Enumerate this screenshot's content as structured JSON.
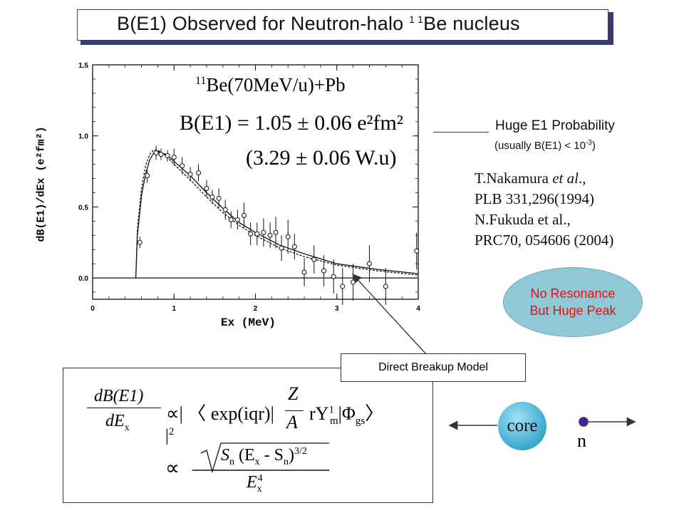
{
  "title": {
    "prefix": "B(E1)  Observed for Neutron-halo ",
    "sup_mass": "1 1",
    "suffix": "Be nucleus"
  },
  "plot": {
    "reaction_sup": "11",
    "reaction": "Be(70MeV/u)+Pb",
    "be1_value": "B(E1) = 1.05 ± 0.06 e²fm²",
    "wu_value": "(3.29 ± 0.06 W.u)",
    "xlabel": "Ex (MeV)",
    "ylabel": "dB(E1)/dEx (e²fm²)"
  },
  "chart_data": {
    "type": "scatter",
    "xlabel": "Ex (MeV)",
    "ylabel": "dB(E1)/dEx (e²fm²)",
    "xlim": [
      0,
      4
    ],
    "ylim": [
      -0.15,
      1.5
    ],
    "xticks": [
      "0",
      "1",
      "2",
      "3",
      "4"
    ],
    "yticks": [
      "0.0",
      "0.5",
      "1.0",
      "1.5"
    ],
    "series": [
      {
        "style": "points",
        "x": [
          0.58,
          0.67,
          0.78,
          0.84,
          0.92,
          1.0,
          1.1,
          1.2,
          1.3,
          1.4,
          1.47,
          1.55,
          1.63,
          1.7,
          1.78,
          1.86,
          1.94,
          2.02,
          2.1,
          2.18,
          2.25,
          2.32,
          2.4,
          2.48,
          2.6,
          2.72,
          2.84,
          2.96,
          3.07,
          3.2,
          3.4,
          3.6,
          3.98
        ],
        "y": [
          0.25,
          0.72,
          0.88,
          0.87,
          0.86,
          0.85,
          0.79,
          0.73,
          0.74,
          0.63,
          0.57,
          0.56,
          0.48,
          0.41,
          0.41,
          0.44,
          0.31,
          0.31,
          0.32,
          0.3,
          0.32,
          0.21,
          0.29,
          0.22,
          0.04,
          0.13,
          0.05,
          0.01,
          -0.06,
          -0.03,
          0.1,
          -0.06,
          0.19
        ],
        "err": [
          0.04,
          0.05,
          0.05,
          0.04,
          0.04,
          0.06,
          0.06,
          0.05,
          0.06,
          0.06,
          0.05,
          0.07,
          0.07,
          0.06,
          0.07,
          0.09,
          0.08,
          0.08,
          0.1,
          0.09,
          0.11,
          0.09,
          0.12,
          0.09,
          0.1,
          0.1,
          0.11,
          0.12,
          0.13,
          0.13,
          0.13,
          0.13,
          0.13
        ]
      },
      {
        "style": "solid",
        "x": [
          0.53,
          0.55,
          0.6,
          0.65,
          0.7,
          0.75,
          0.8,
          0.9,
          1.0,
          1.2,
          1.4,
          1.6,
          1.8,
          2.0,
          2.3,
          2.6,
          3.0,
          3.5,
          4.0
        ],
        "y": [
          0.0,
          0.3,
          0.58,
          0.73,
          0.83,
          0.88,
          0.89,
          0.87,
          0.82,
          0.72,
          0.6,
          0.49,
          0.39,
          0.32,
          0.23,
          0.17,
          0.1,
          0.06,
          0.03
        ]
      },
      {
        "style": "dashed",
        "x": [
          0.53,
          0.55,
          0.6,
          0.65,
          0.7,
          0.75,
          0.8,
          0.9,
          1.0,
          1.2,
          1.4,
          1.6,
          1.8,
          2.0,
          2.3,
          2.6,
          3.0,
          3.5,
          4.0
        ],
        "y": [
          0.0,
          0.34,
          0.63,
          0.79,
          0.87,
          0.9,
          0.9,
          0.86,
          0.8,
          0.69,
          0.57,
          0.46,
          0.37,
          0.3,
          0.21,
          0.15,
          0.09,
          0.05,
          0.02
        ]
      }
    ],
    "grid": false
  },
  "notes": {
    "huge": "Huge E1 Probability",
    "usually_pre": "(usually B(E1) < 10",
    "usually_sup": "-3",
    "usually_post": ")",
    "ref1_author": "T.Nakamura ",
    "ref1_etal": "et al",
    "ref1_dot": "., ",
    "ref1_journal": "PLB 331,296(1994)",
    "ref2_author": "N.Fukuda et al.,",
    "ref2_journal": "PRC70, 054606 (2004)"
  },
  "ellipse": {
    "line1": "No Resonance",
    "line2": "But Huge Peak"
  },
  "callout": {
    "label": "Direct Breakup Model"
  },
  "formula": {
    "lhs_num": "dB(E1)",
    "lhs_den": "dE",
    "lhs_den_sub": "x",
    "prop": "∝",
    "bar1": "| ",
    "bra": "〈",
    "exp": "exp(iqr)",
    "bar2": "|",
    "z": "Z",
    "a": "A",
    "rY": "rY",
    "rY_sup": "1",
    "rY_sub": "m",
    "bar3": "|",
    "phi": "Φ",
    "phi_sub": "gs",
    "ket": "〉",
    "sq_bar": "|",
    "sq_sup": "2",
    "prop2": "∝",
    "sn": "S",
    "sn_sub": "n",
    "paren": " (E",
    "paren_sub": "x",
    "minus": " - S",
    "minus_sub": "n",
    "close": ")",
    "pow": "3/2",
    "den_e": "E",
    "den_sub": "x",
    "den_sup": "4"
  },
  "nucleus": {
    "core_label": "core",
    "n_label": "n"
  }
}
